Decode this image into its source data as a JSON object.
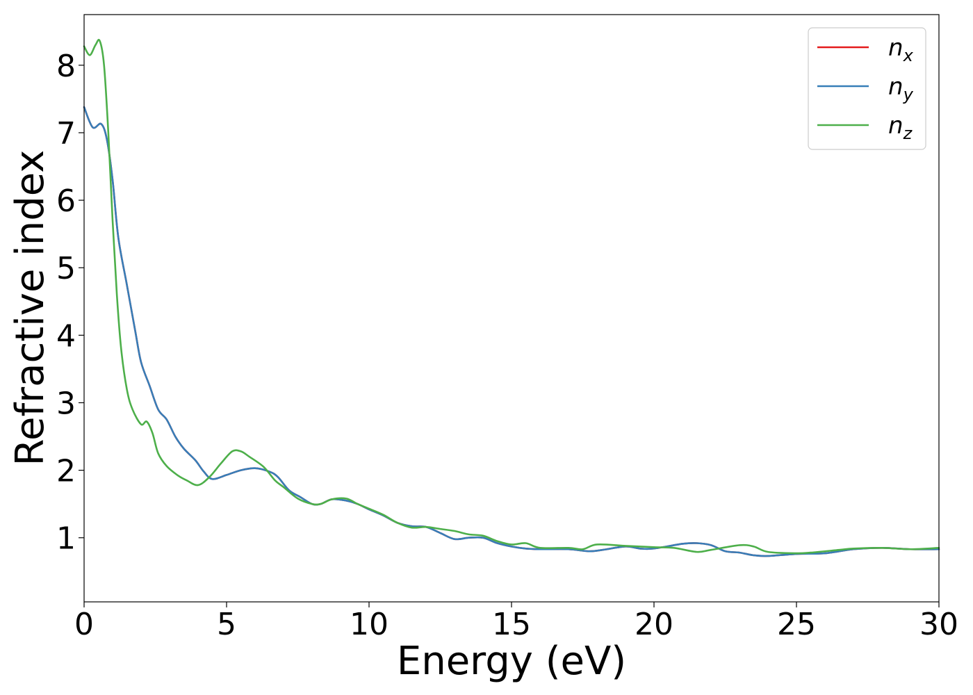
{
  "chart_data": {
    "type": "line",
    "title": "",
    "xlabel": "Energy (eV)",
    "ylabel": "Refractive index",
    "xlim": [
      0,
      30
    ],
    "ylim": [
      0.05,
      8.75
    ],
    "xticks": [
      "0",
      "5",
      "10",
      "15",
      "20",
      "25",
      "30"
    ],
    "yticks": [
      "1",
      "2",
      "3",
      "4",
      "5",
      "6",
      "7",
      "8"
    ],
    "grid": false,
    "legend_position": "top-right",
    "series": [
      {
        "name": "n_x",
        "base": "n",
        "sub": "x",
        "color": "#e41a1c",
        "x": [
          0,
          0.3,
          0.6,
          0.8,
          1.0,
          1.2,
          1.5,
          1.8,
          2.0,
          2.3,
          2.6,
          2.9,
          3.2,
          3.5,
          3.9,
          4.2,
          4.5,
          5.0,
          5.5,
          6.0,
          6.5,
          6.8,
          7.2,
          7.6,
          8.0,
          8.3,
          8.7,
          9.2,
          9.6,
          10.0,
          10.5,
          11.0,
          11.5,
          12.0,
          12.5,
          13.0,
          13.5,
          14.0,
          14.5,
          15.0,
          15.5,
          16.0,
          17.0,
          17.7,
          18.2,
          19.0,
          19.5,
          20.0,
          21.0,
          21.5,
          22.0,
          22.5,
          23.0,
          23.5,
          24.0,
          25.0,
          26.0,
          27.0,
          28.0,
          29.0,
          30.0
        ],
        "y": [
          7.38,
          7.08,
          7.13,
          6.9,
          6.3,
          5.45,
          4.75,
          4.05,
          3.6,
          3.25,
          2.9,
          2.75,
          2.5,
          2.32,
          2.15,
          1.98,
          1.87,
          1.93,
          2.0,
          2.03,
          1.98,
          1.9,
          1.7,
          1.6,
          1.5,
          1.5,
          1.57,
          1.55,
          1.5,
          1.42,
          1.33,
          1.22,
          1.17,
          1.16,
          1.07,
          0.98,
          1.0,
          1.0,
          0.92,
          0.87,
          0.84,
          0.83,
          0.83,
          0.8,
          0.82,
          0.87,
          0.84,
          0.84,
          0.91,
          0.92,
          0.89,
          0.8,
          0.78,
          0.74,
          0.73,
          0.76,
          0.77,
          0.83,
          0.85,
          0.83,
          0.83
        ]
      },
      {
        "name": "n_y",
        "base": "n",
        "sub": "y",
        "color": "#377eb8",
        "x": [
          0,
          0.3,
          0.6,
          0.8,
          1.0,
          1.2,
          1.5,
          1.8,
          2.0,
          2.3,
          2.6,
          2.9,
          3.2,
          3.5,
          3.9,
          4.2,
          4.5,
          5.0,
          5.5,
          6.0,
          6.5,
          6.8,
          7.2,
          7.6,
          8.0,
          8.3,
          8.7,
          9.2,
          9.6,
          10.0,
          10.5,
          11.0,
          11.5,
          12.0,
          12.5,
          13.0,
          13.5,
          14.0,
          14.5,
          15.0,
          15.5,
          16.0,
          17.0,
          17.7,
          18.2,
          19.0,
          19.5,
          20.0,
          21.0,
          21.5,
          22.0,
          22.5,
          23.0,
          23.5,
          24.0,
          25.0,
          26.0,
          27.0,
          28.0,
          29.0,
          30.0
        ],
        "y": [
          7.38,
          7.08,
          7.13,
          6.9,
          6.3,
          5.45,
          4.75,
          4.05,
          3.6,
          3.25,
          2.9,
          2.75,
          2.5,
          2.32,
          2.15,
          1.98,
          1.87,
          1.93,
          2.0,
          2.03,
          1.98,
          1.9,
          1.7,
          1.6,
          1.5,
          1.5,
          1.57,
          1.55,
          1.5,
          1.42,
          1.33,
          1.22,
          1.17,
          1.16,
          1.07,
          0.98,
          1.0,
          1.0,
          0.92,
          0.87,
          0.84,
          0.83,
          0.83,
          0.8,
          0.82,
          0.87,
          0.84,
          0.84,
          0.91,
          0.92,
          0.89,
          0.8,
          0.78,
          0.74,
          0.73,
          0.76,
          0.77,
          0.83,
          0.85,
          0.83,
          0.83
        ]
      },
      {
        "name": "n_z",
        "base": "n",
        "sub": "z",
        "color": "#4daf4a",
        "x": [
          0,
          0.2,
          0.4,
          0.55,
          0.7,
          0.85,
          1.0,
          1.15,
          1.3,
          1.5,
          1.7,
          2.0,
          2.2,
          2.4,
          2.6,
          2.9,
          3.3,
          3.6,
          4.0,
          4.4,
          4.8,
          5.2,
          5.5,
          5.8,
          6.3,
          6.7,
          7.0,
          7.5,
          8.0,
          8.3,
          8.7,
          9.2,
          9.6,
          10.0,
          10.5,
          11.0,
          11.5,
          12.0,
          12.5,
          13.0,
          13.5,
          14.0,
          14.5,
          15.0,
          15.5,
          16.0,
          17.0,
          17.5,
          18.0,
          19.0,
          20.0,
          20.7,
          21.5,
          22.0,
          23.0,
          23.5,
          24.0,
          25.0,
          25.5,
          26.5,
          27.0,
          28.0,
          29.0,
          30.0
        ],
        "y": [
          8.28,
          8.15,
          8.3,
          8.36,
          8.0,
          7.0,
          5.7,
          4.6,
          3.8,
          3.2,
          2.9,
          2.68,
          2.72,
          2.55,
          2.25,
          2.06,
          1.92,
          1.85,
          1.78,
          1.9,
          2.1,
          2.28,
          2.28,
          2.2,
          2.05,
          1.85,
          1.75,
          1.58,
          1.5,
          1.5,
          1.57,
          1.58,
          1.5,
          1.43,
          1.34,
          1.22,
          1.15,
          1.16,
          1.13,
          1.1,
          1.05,
          1.03,
          0.95,
          0.9,
          0.92,
          0.85,
          0.85,
          0.83,
          0.9,
          0.88,
          0.86,
          0.85,
          0.79,
          0.82,
          0.89,
          0.87,
          0.79,
          0.77,
          0.78,
          0.82,
          0.84,
          0.85,
          0.83,
          0.85
        ]
      }
    ]
  }
}
